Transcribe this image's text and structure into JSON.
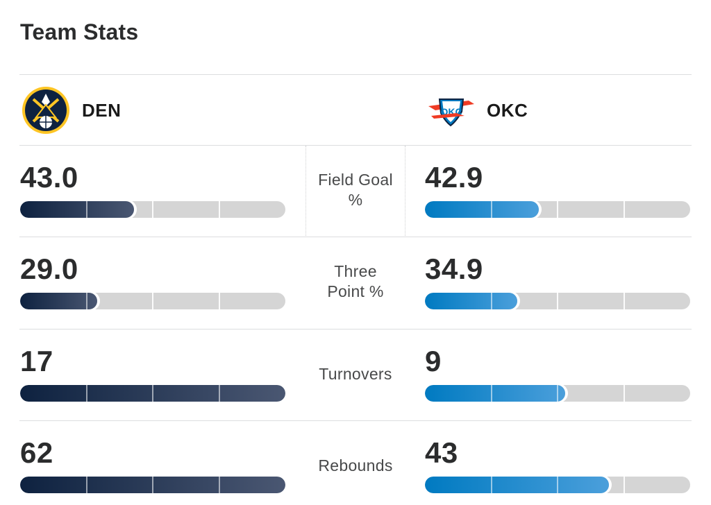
{
  "title": "Team Stats",
  "teams": {
    "home": {
      "abbrev": "DEN",
      "logo_icon": "nuggets-logo-icon",
      "color": "#0e2240",
      "accent": "#fec524"
    },
    "away": {
      "abbrev": "OKC",
      "logo_icon": "thunder-logo-icon",
      "color": "#007ac1",
      "accent": "#ef3b24"
    }
  },
  "stats": [
    {
      "label_lines": [
        "Field Goal",
        "%"
      ],
      "home": "43.0",
      "away": "42.9",
      "home_fill": 0.43,
      "away_fill": 0.429
    },
    {
      "label_lines": [
        "Three",
        "Point %"
      ],
      "home": "29.0",
      "away": "34.9",
      "home_fill": 0.29,
      "away_fill": 0.349
    },
    {
      "label_lines": [
        "Turnovers"
      ],
      "home": "17",
      "away": "9",
      "home_fill": 1.0,
      "away_fill": 0.53
    },
    {
      "label_lines": [
        "Rebounds"
      ],
      "home": "62",
      "away": "43",
      "home_fill": 1.0,
      "away_fill": 0.694
    }
  ]
}
